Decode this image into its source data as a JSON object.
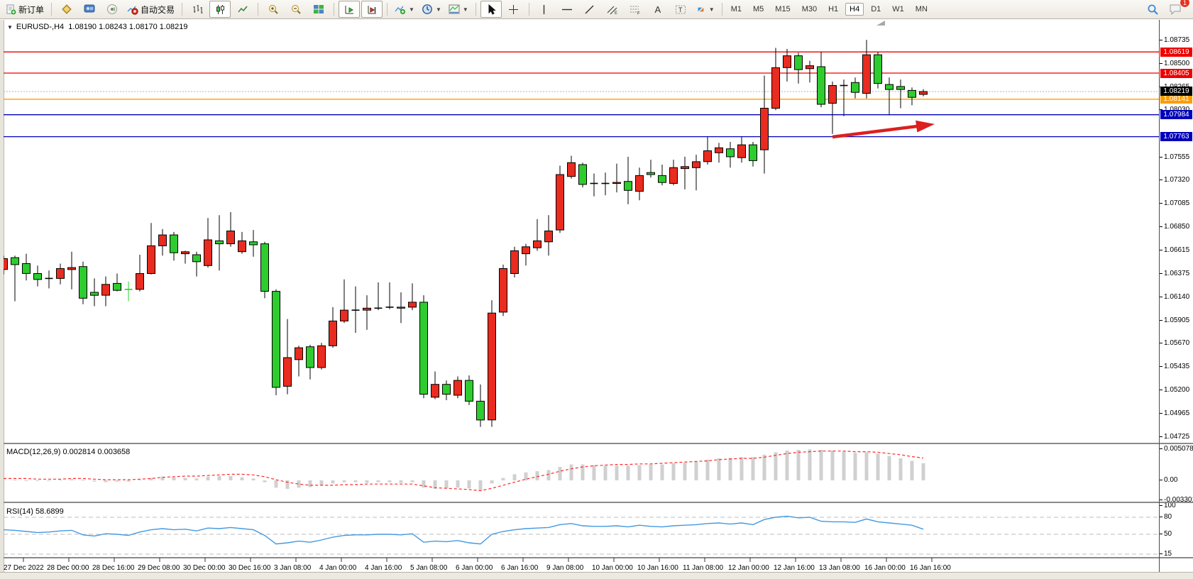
{
  "toolbar": {
    "new_order_label": "新订单",
    "auto_trading_label": "自动交易",
    "tool_letters": {
      "text_tool": "A",
      "channel_tool": "E",
      "fibo_tool": "F",
      "label_tool": "T"
    },
    "timeframes": [
      "M1",
      "M5",
      "M15",
      "M30",
      "H1",
      "H4",
      "D1",
      "W1",
      "MN"
    ],
    "active_timeframe": "H4",
    "notification_count": "1"
  },
  "chart": {
    "symbol_period": "EURUSD-,H4",
    "ohlc": "1.08190 1.08243 1.08170 1.08219"
  },
  "chart_data": {
    "type": "candlestick",
    "symbol": "EURUSD",
    "timeframe": "H4",
    "current_price": {
      "label": "1.08219",
      "value": 1.08219
    },
    "price_ticks": [
      "1.08735",
      "1.08500",
      "1.08265",
      "1.08030",
      "1.07555",
      "1.07320",
      "1.07085",
      "1.06850",
      "1.06615",
      "1.06375",
      "1.06140",
      "1.05905",
      "1.05670",
      "1.05435",
      "1.05200",
      "1.04965",
      "1.04725"
    ],
    "levels": [
      {
        "label": "1.08619",
        "price": 1.08619,
        "color": "#ee0000"
      },
      {
        "label": "1.08405",
        "price": 1.08405,
        "color": "#ee0000"
      },
      {
        "label": "1.08141",
        "price": 1.08141,
        "color": "#ff9d00"
      },
      {
        "label": "1.07984",
        "price": 1.07984,
        "color": "#0000bb"
      },
      {
        "label": "1.07763",
        "price": 1.07763,
        "color": "#0000bb"
      }
    ],
    "arrow_annotation": {
      "from_bar": 73,
      "from_price": 1.0776,
      "to_bar": 82,
      "to_price": 1.0789,
      "color": "#dd1f1f"
    },
    "time_labels": [
      "27 Dec 2022",
      "28 Dec 00:00",
      "28 Dec 16:00",
      "29 Dec 08:00",
      "30 Dec 00:00",
      "30 Dec 16:00",
      "3 Jan 08:00",
      "4 Jan 00:00",
      "4 Jan 16:00",
      "5 Jan 08:00",
      "6 Jan 00:00",
      "6 Jan 16:00",
      "9 Jan 08:00",
      "10 Jan 00:00",
      "10 Jan 16:00",
      "11 Jan 08:00",
      "12 Jan 00:00",
      "12 Jan 16:00",
      "13 Jan 08:00",
      "16 Jan 00:00",
      "16 Jan 16:00"
    ],
    "up_color": "#ea2b1f",
    "down_color": "#2ecc2e",
    "lime_doji_indexes": [
      11
    ],
    "candles": [
      [
        1.0642,
        1.0656,
        1.0637,
        1.0653
      ],
      [
        1.0654,
        1.0656,
        1.061,
        1.0647
      ],
      [
        1.0648,
        1.0658,
        1.0631,
        1.0638
      ],
      [
        1.0638,
        1.0646,
        1.0625,
        1.0632
      ],
      [
        1.0633,
        1.0641,
        1.0623,
        1.0633
      ],
      [
        1.0633,
        1.0648,
        1.0627,
        1.0643
      ],
      [
        1.0642,
        1.066,
        1.0622,
        1.0644
      ],
      [
        1.0645,
        1.065,
        1.0607,
        1.0613
      ],
      [
        1.0619,
        1.0633,
        1.0605,
        1.0616
      ],
      [
        1.0616,
        1.0635,
        1.0605,
        1.0627
      ],
      [
        1.0628,
        1.0638,
        1.062,
        1.0621
      ],
      [
        1.0622,
        1.063,
        1.061,
        1.0622
      ],
      [
        1.0622,
        1.0657,
        1.062,
        1.0638
      ],
      [
        1.0638,
        1.0689,
        1.0637,
        1.0666
      ],
      [
        1.0666,
        1.0683,
        1.0656,
        1.0677
      ],
      [
        1.0677,
        1.068,
        1.0651,
        1.0659
      ],
      [
        1.0658,
        1.0661,
        1.0648,
        1.066
      ],
      [
        1.0657,
        1.066,
        1.0635,
        1.065
      ],
      [
        1.0646,
        1.0694,
        1.0644,
        1.0672
      ],
      [
        1.0671,
        1.0697,
        1.0641,
        1.0668
      ],
      [
        1.0668,
        1.07,
        1.0665,
        1.0681
      ],
      [
        1.066,
        1.068,
        1.0658,
        1.0671
      ],
      [
        1.067,
        1.0682,
        1.0655,
        1.0667
      ],
      [
        1.0668,
        1.067,
        1.0613,
        1.062
      ],
      [
        1.062,
        1.0622,
        1.0515,
        1.0523
      ],
      [
        1.0524,
        1.0592,
        1.0516,
        1.0553
      ],
      [
        1.0551,
        1.0565,
        1.0534,
        1.0563
      ],
      [
        1.0564,
        1.0566,
        1.0531,
        1.0543
      ],
      [
        1.0543,
        1.0568,
        1.0541,
        1.0565
      ],
      [
        1.0565,
        1.0604,
        1.0563,
        1.059
      ],
      [
        1.059,
        1.0632,
        1.0588,
        1.0601
      ],
      [
        1.0601,
        1.0625,
        1.0578,
        1.0601
      ],
      [
        1.0601,
        1.0616,
        1.0581,
        1.0603
      ],
      [
        1.0603,
        1.0629,
        1.0601,
        1.0603
      ],
      [
        1.0604,
        1.0629,
        1.0602,
        1.0604
      ],
      [
        1.0604,
        1.0619,
        1.0588,
        1.0603
      ],
      [
        1.0604,
        1.0628,
        1.0601,
        1.0609
      ],
      [
        1.0609,
        1.0616,
        1.0512,
        1.0516
      ],
      [
        1.0513,
        1.0539,
        1.0511,
        1.0526
      ],
      [
        1.0526,
        1.053,
        1.051,
        1.0516
      ],
      [
        1.0515,
        1.0534,
        1.0512,
        1.053
      ],
      [
        1.053,
        1.0535,
        1.0505,
        1.0509
      ],
      [
        1.0509,
        1.0526,
        1.0483,
        1.049
      ],
      [
        1.049,
        1.0611,
        1.0483,
        1.0598
      ],
      [
        1.0599,
        1.0647,
        1.0595,
        1.0643
      ],
      [
        1.0638,
        1.0665,
        1.0634,
        1.0661
      ],
      [
        1.0658,
        1.0668,
        1.0646,
        1.0665
      ],
      [
        1.0664,
        1.0693,
        1.0661,
        1.0671
      ],
      [
        1.067,
        1.0697,
        1.0656,
        1.0681
      ],
      [
        1.0682,
        1.0747,
        1.0679,
        1.0738
      ],
      [
        1.0736,
        1.0757,
        1.0734,
        1.075
      ],
      [
        1.0748,
        1.075,
        1.0725,
        1.0728
      ],
      [
        1.0729,
        1.0739,
        1.0716,
        1.0729
      ],
      [
        1.0729,
        1.074,
        1.0717,
        1.0729
      ],
      [
        1.0729,
        1.0749,
        1.072,
        1.073
      ],
      [
        1.0731,
        1.0756,
        1.0708,
        1.0722
      ],
      [
        1.0721,
        1.0745,
        1.0712,
        1.0737
      ],
      [
        1.074,
        1.0753,
        1.0735,
        1.0738
      ],
      [
        1.0737,
        1.0748,
        1.0727,
        1.073
      ],
      [
        1.0729,
        1.0753,
        1.0727,
        1.0745
      ],
      [
        1.0744,
        1.0756,
        1.0723,
        1.0746
      ],
      [
        1.0745,
        1.0758,
        1.0722,
        1.0751
      ],
      [
        1.0751,
        1.0776,
        1.0748,
        1.0762
      ],
      [
        1.076,
        1.077,
        1.075,
        1.0765
      ],
      [
        1.0764,
        1.0771,
        1.0745,
        1.0756
      ],
      [
        1.0755,
        1.0776,
        1.075,
        1.0768
      ],
      [
        1.0768,
        1.0771,
        1.0746,
        1.0752
      ],
      [
        1.0763,
        1.0838,
        1.0739,
        1.0805
      ],
      [
        1.0805,
        1.0866,
        1.0803,
        1.0846
      ],
      [
        1.0846,
        1.0865,
        1.0832,
        1.0858
      ],
      [
        1.0858,
        1.0861,
        1.083,
        1.0844
      ],
      [
        1.0845,
        1.0853,
        1.0831,
        1.0848
      ],
      [
        1.0847,
        1.0862,
        1.0806,
        1.0809
      ],
      [
        1.081,
        1.0832,
        1.0779,
        1.0828
      ],
      [
        1.0828,
        1.0834,
        1.0797,
        1.0828
      ],
      [
        1.0831,
        1.0836,
        1.0815,
        1.0821
      ],
      [
        1.082,
        1.0874,
        1.0815,
        1.0859
      ],
      [
        1.0859,
        1.0862,
        1.0825,
        1.083
      ],
      [
        1.0829,
        1.0836,
        1.0798,
        1.0824
      ],
      [
        1.0827,
        1.0834,
        1.0805,
        1.0824
      ],
      [
        1.0823,
        1.0826,
        1.0808,
        1.0816
      ],
      [
        1.0819,
        1.08243,
        1.0817,
        1.08219
      ]
    ],
    "macd": {
      "label": "MACD(12,26,9)",
      "main_value": "0.002814",
      "signal_value": "0.003658",
      "axis_ticks": [
        0.005078,
        0.0,
        -0.003301
      ],
      "axis_tick_labels": [
        "0.005078",
        "0.00",
        "-0.003301"
      ],
      "histogram": [
        0.0002,
        0.0001,
        0.0,
        -0.0001,
        -0.0001,
        0.0001,
        0.0002,
        0.0001,
        -0.0002,
        -0.0003,
        -0.0002,
        -0.0002,
        0.0001,
        0.0004,
        0.0006,
        0.0005,
        0.0004,
        0.0003,
        0.0006,
        0.0007,
        0.0007,
        0.0005,
        0.0003,
        -0.0003,
        -0.0012,
        -0.0014,
        -0.0012,
        -0.0011,
        -0.0008,
        -0.0005,
        -0.0003,
        -0.0003,
        -0.0004,
        -0.0003,
        -0.0003,
        -0.0004,
        -0.0003,
        -0.0012,
        -0.0014,
        -0.0013,
        -0.0012,
        -0.0013,
        -0.0016,
        -0.0005,
        0.0004,
        0.001,
        0.0013,
        0.0015,
        0.0017,
        0.0022,
        0.0026,
        0.0026,
        0.0025,
        0.0024,
        0.0024,
        0.0024,
        0.0025,
        0.0026,
        0.0026,
        0.0028,
        0.0029,
        0.0031,
        0.0034,
        0.0036,
        0.0037,
        0.0038,
        0.0038,
        0.0042,
        0.0046,
        0.0049,
        0.005,
        0.005078,
        0.005,
        0.0049,
        0.0047,
        0.0045,
        0.0046,
        0.0044,
        0.004,
        0.0036,
        0.0032,
        0.002814
      ],
      "signal": [
        0.0003,
        0.0003,
        0.0003,
        0.0002,
        0.0002,
        0.0002,
        0.0003,
        0.0003,
        0.0002,
        0.0001,
        0.0001,
        0.0001,
        0.0002,
        0.0003,
        0.0005,
        0.0006,
        0.0007,
        0.0007,
        0.0008,
        0.0009,
        0.001,
        0.001,
        0.0009,
        0.0006,
        0.0001,
        -0.0003,
        -0.0006,
        -0.0008,
        -0.0008,
        -0.0008,
        -0.0007,
        -0.0007,
        -0.0006,
        -0.0006,
        -0.0006,
        -0.0006,
        -0.0006,
        -0.0009,
        -0.0012,
        -0.0013,
        -0.0014,
        -0.0015,
        -0.0017,
        -0.0013,
        -0.0008,
        -0.0003,
        0.0002,
        0.0006,
        0.001,
        0.0015,
        0.0019,
        0.0022,
        0.0024,
        0.0025,
        0.0026,
        0.0026,
        0.0027,
        0.0027,
        0.0028,
        0.0029,
        0.003,
        0.0031,
        0.0032,
        0.0034,
        0.0035,
        0.0036,
        0.0036,
        0.0038,
        0.0041,
        0.0044,
        0.0046,
        0.0047,
        0.0048,
        0.0048,
        0.0048,
        0.0047,
        0.0047,
        0.0046,
        0.0044,
        0.0042,
        0.0039,
        0.003658
      ],
      "signal_color": "#ff2a2a",
      "histogram_color": "#d0d0d0"
    },
    "rsi": {
      "label": "RSI(14)",
      "value": "58.6899",
      "axis_tick_labels": [
        "100",
        "80",
        "50",
        "15"
      ],
      "axis_tick_values": [
        100,
        80,
        50,
        15
      ],
      "level_lines": [
        80,
        50,
        15
      ],
      "line_color": "#4499e0",
      "values": [
        58,
        57,
        55,
        53,
        54,
        56,
        57,
        49,
        47,
        51,
        50,
        48,
        54,
        58,
        60,
        58,
        59,
        56,
        61,
        60,
        62,
        60,
        58,
        48,
        33,
        35,
        38,
        36,
        40,
        45,
        48,
        49,
        49,
        50,
        50,
        49,
        51,
        36,
        38,
        37,
        39,
        35,
        33,
        50,
        55,
        58,
        60,
        61,
        62,
        67,
        69,
        65,
        64,
        64,
        65,
        63,
        66,
        64,
        63,
        65,
        66,
        67,
        69,
        70,
        68,
        70,
        67,
        76,
        80,
        82,
        79,
        80,
        73,
        72,
        72,
        71,
        77,
        72,
        70,
        68,
        66,
        59
      ]
    }
  }
}
